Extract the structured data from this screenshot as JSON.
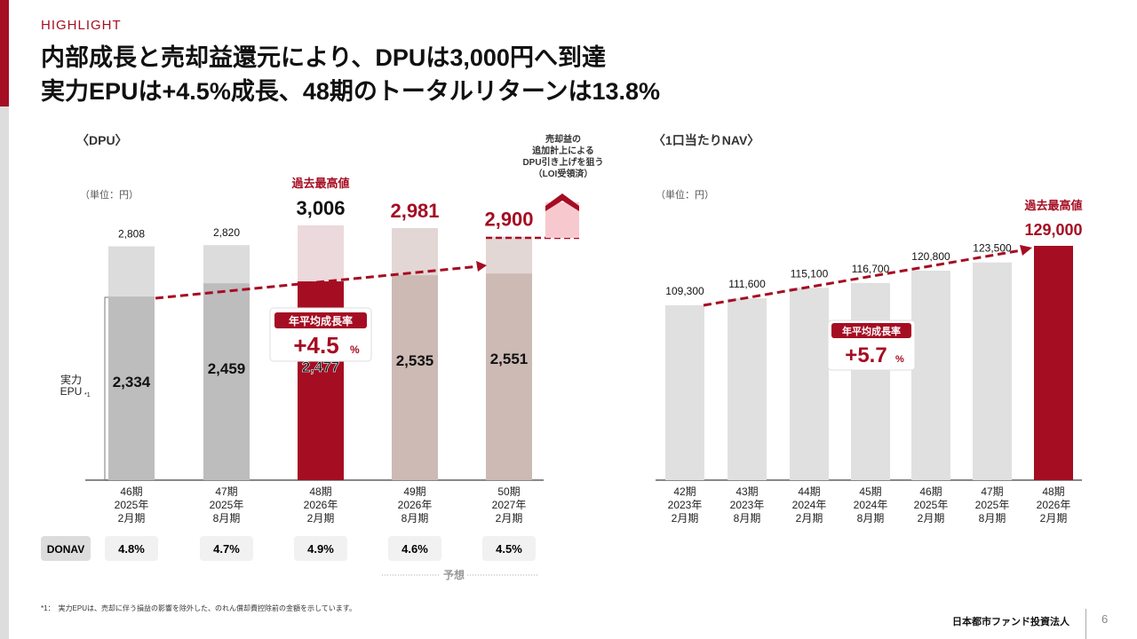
{
  "header": {
    "tag": "HIGHLIGHT",
    "title_line1": "内部成長と売却益還元により、DPUは3,000円へ到達",
    "title_line2": "実力EPUは+4.5%成長、48期のトータルリターンは13.8%"
  },
  "colors": {
    "accent": "#a50d22",
    "grey_total": "#dcdcdc",
    "grey_epu": "#bdbdbd",
    "forecast_total": "#e3d7d6",
    "forecast_epu": "#cdbab5",
    "record_total": "#ecd9db"
  },
  "chart_data": [
    {
      "type": "bar",
      "title": "〈DPU〉",
      "unit_label": "（単位：円）",
      "categories": [
        "46期\n2025年\n2月期",
        "47期\n2025年\n8月期",
        "48期\n2026年\n2月期",
        "49期\n2026年\n8月期",
        "50期\n2027年\n2月期"
      ],
      "series": [
        {
          "name": "DPU",
          "values": [
            2808,
            2820,
            3006,
            2981,
            2900
          ]
        },
        {
          "name": "実力EPU*1",
          "values": [
            2334,
            2459,
            2477,
            2535,
            2551
          ]
        }
      ],
      "record_label": "過去最高値",
      "growth_label": "年平均成長率",
      "growth_value": "+4.5",
      "growth_unit": "%",
      "forecast_note": "売却益の\n追加計上による\nDPU引き上げを狙う\n（LOI受領済）",
      "forecast_label": "予想",
      "row_label": "DONAV",
      "donav": [
        "4.8%",
        "4.7%",
        "4.9%",
        "4.6%",
        "4.5%"
      ],
      "epu_axis_label": "実力\nEPU",
      "epu_sup": "*1"
    },
    {
      "type": "bar",
      "title": "〈1口当たりNAV〉",
      "unit_label": "（単位：円）",
      "categories": [
        "42期\n2023年\n2月期",
        "43期\n2023年\n8月期",
        "44期\n2024年\n2月期",
        "45期\n2024年\n8月期",
        "46期\n2025年\n2月期",
        "47期\n2025年\n8月期",
        "48期\n2026年\n2月期"
      ],
      "values": [
        109300,
        111600,
        115100,
        116700,
        120800,
        123500,
        129000
      ],
      "record_label": "過去最高値",
      "growth_label": "年平均成長率",
      "growth_value": "+5.7",
      "growth_unit": "%"
    }
  ],
  "footnote": "*1：　実力EPUは、売却に伴う損益の影響を除外した、のれん償却費控除前の金額を示しています。",
  "footer": {
    "company": "日本都市ファンド投資法人",
    "page": "6"
  }
}
